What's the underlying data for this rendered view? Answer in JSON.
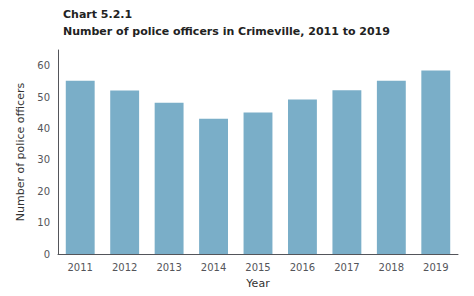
{
  "chart_data": {
    "type": "bar",
    "title": "Chart 5.2.1",
    "subtitle": "Number of police officers in Crimeville, 2011 to 2019",
    "x_label": "Year",
    "y_label": "Number of police officers",
    "categories": [
      "2011",
      "2012",
      "2013",
      "2014",
      "2015",
      "2016",
      "2017",
      "2018",
      "2019"
    ],
    "values": [
      55.2,
      52.1,
      48.2,
      43.1,
      45.1,
      49.2,
      52.2,
      55.2,
      58.5
    ],
    "color": "#7aaec8",
    "ylim": [
      0,
      65
    ],
    "yticks": [
      0,
      10,
      20,
      30,
      40,
      50,
      60
    ],
    "grid": false
  }
}
